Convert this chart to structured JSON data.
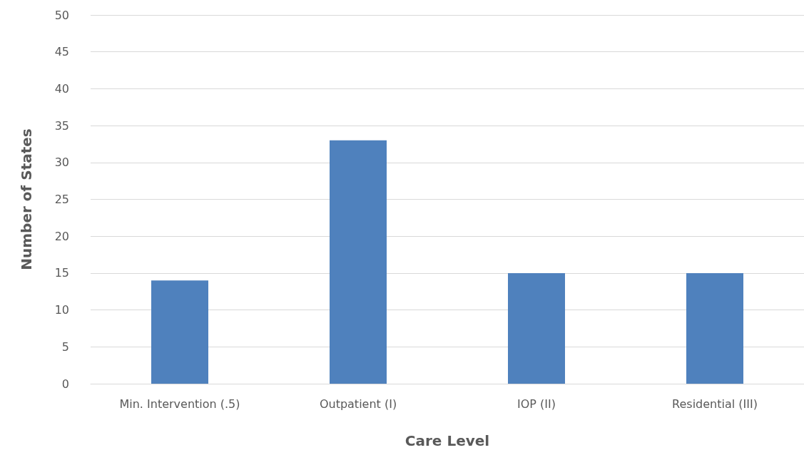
{
  "chart_data": {
    "type": "bar",
    "xlabel": "Care Level",
    "ylabel": "Number of States",
    "categories": [
      "Min. Intervention (.5)",
      "Outpatient (I)",
      "IOP (II)",
      "Residential (III)"
    ],
    "values": [
      14,
      33,
      15,
      15
    ],
    "color": "#4f81bd",
    "ylim": [
      0,
      50
    ],
    "yticks": [
      0,
      5,
      10,
      15,
      20,
      25,
      30,
      35,
      40,
      45,
      50
    ],
    "grid": "y"
  }
}
